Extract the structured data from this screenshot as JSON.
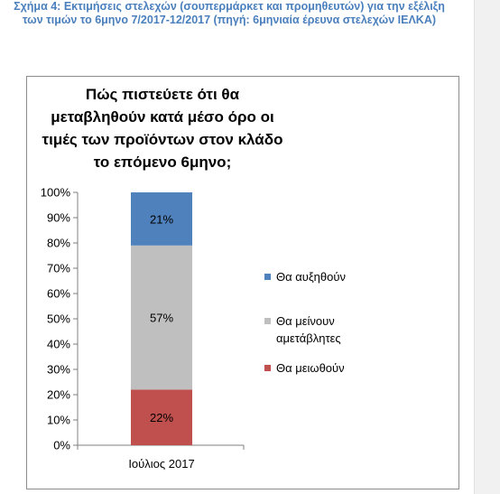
{
  "caption": {
    "label": "Σχήμα 4:",
    "text": " Εκτιμήσεις στελεχών (σουπερμάρκετ και προμηθευτών) για την εξέλιξη των τιμών το 6μηνο 7/2017-12/2017 (πηγή: 6μηνιαία έρευνα στελεχών ΙΕΛΚΑ)"
  },
  "chart_data": {
    "type": "bar",
    "stacked": true,
    "title": "Πώς πιστεύετε ότι θα μεταβληθούν κατά μέσο όρο οι τιμές των προϊόντων στον κλάδο το επόμενο 6μηνο;",
    "categories": [
      "Ιούλιος 2017"
    ],
    "series": [
      {
        "name": "Θα μειωθούν",
        "values": [
          22
        ],
        "color": "#c0504d",
        "label": "22%"
      },
      {
        "name": "Θα μείνουν αμετάβλητες",
        "values": [
          57
        ],
        "color": "#bfbfbf",
        "label": "57%"
      },
      {
        "name": "Θα αυξηθούν",
        "values": [
          21
        ],
        "color": "#4f81bd",
        "label": "21%"
      }
    ],
    "ylim": [
      0,
      100
    ],
    "yticks": [
      "0%",
      "10%",
      "20%",
      "30%",
      "40%",
      "50%",
      "60%",
      "70%",
      "80%",
      "90%",
      "100%"
    ],
    "grid": false,
    "legend_position": "right"
  },
  "legend": [
    {
      "lines": [
        "Θα αυξηθούν"
      ],
      "color": "#4f81bd"
    },
    {
      "lines": [
        "Θα μείνουν",
        "αμετάβλητες"
      ],
      "color": "#bfbfbf"
    },
    {
      "lines": [
        "Θα μειωθούν"
      ],
      "color": "#c0504d"
    }
  ]
}
